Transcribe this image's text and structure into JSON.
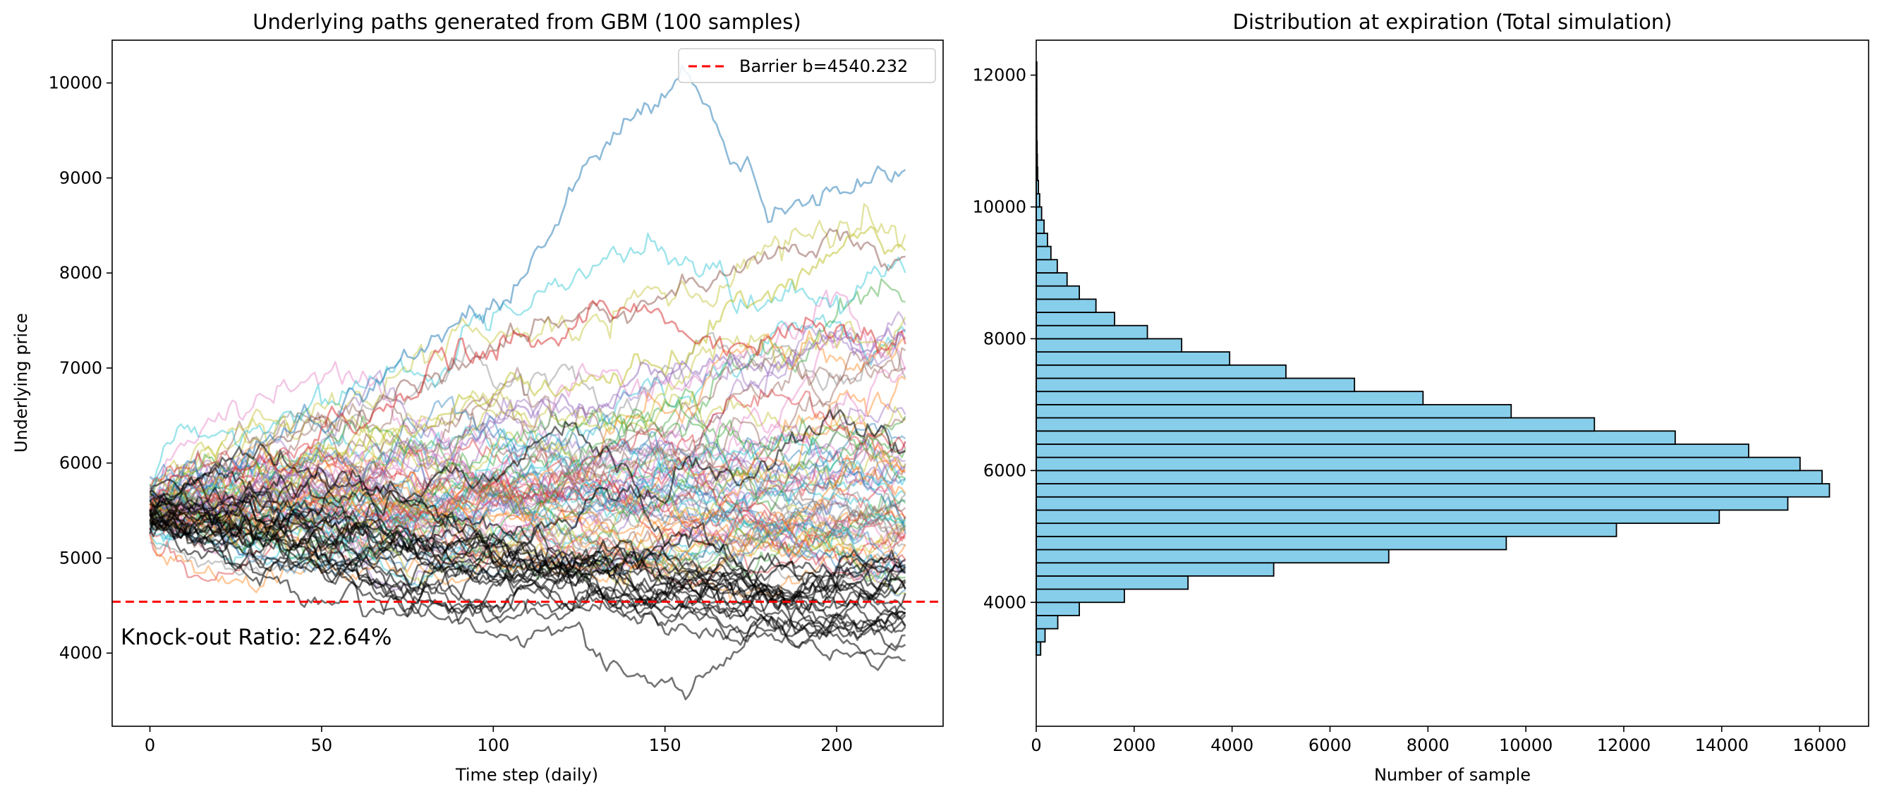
{
  "chart_data": [
    {
      "type": "line",
      "title": "Underlying paths generated from GBM (100 samples)",
      "xlabel": "Time step (daily)",
      "ylabel": "Underlying price",
      "xlim": [
        -11,
        231
      ],
      "ylim": [
        3230,
        10450
      ],
      "xticks": [
        0,
        50,
        100,
        150,
        200
      ],
      "yticks": [
        4000,
        5000,
        6000,
        7000,
        8000,
        9000,
        10000
      ],
      "n_steps": 220,
      "n_paths": 100,
      "start_value": 5500,
      "barrier": 4540.232,
      "legend_label": "Barrier b=4540.232",
      "legend_position": "top-right",
      "annotation": "Knock-out Ratio: 22.64%",
      "knocked_out_color": "#000000",
      "barrier_color": "#ff0000",
      "highlight_paths": [
        {
          "color": "#1f77b4",
          "x": [
            0,
            25,
            50,
            75,
            100,
            120,
            135,
            150,
            155,
            165,
            180,
            200,
            220
          ],
          "y": [
            5500,
            6150,
            6500,
            7050,
            7800,
            8650,
            9400,
            9800,
            10150,
            9600,
            8650,
            8800,
            9100
          ]
        },
        {
          "color": "#8c564b",
          "x": [
            0,
            40,
            80,
            120,
            160,
            200,
            210,
            220
          ],
          "y": [
            5500,
            6200,
            6900,
            7450,
            7800,
            8400,
            8250,
            8150
          ]
        },
        {
          "color": "#bcbd22",
          "x": [
            0,
            50,
            100,
            150,
            175,
            200,
            210,
            220
          ],
          "y": [
            5500,
            6000,
            6650,
            7100,
            7600,
            8100,
            8450,
            8100
          ]
        },
        {
          "color": "#d62728",
          "x": [
            0,
            50,
            100,
            130,
            160,
            200,
            220
          ],
          "y": [
            5500,
            6300,
            7300,
            7750,
            7300,
            7400,
            7150
          ]
        },
        {
          "color": "#9467bd",
          "x": [
            0,
            60,
            120,
            180,
            220
          ],
          "y": [
            5500,
            5950,
            6600,
            7150,
            7500
          ]
        }
      ]
    },
    {
      "type": "bar",
      "orientation": "horizontal",
      "title": "Distribution at expiration (Total simulation)",
      "xlabel": "Number of sample",
      "ylabel": "",
      "xlim": [
        0,
        17000
      ],
      "ylim": [
        2120,
        12530
      ],
      "xticks": [
        0,
        2000,
        4000,
        6000,
        8000,
        10000,
        12000,
        14000,
        16000
      ],
      "yticks": [
        4000,
        6000,
        8000,
        10000,
        12000
      ],
      "bar_color": "#87ceeb",
      "edge_color": "#000000",
      "bin_width": 200,
      "bin_starts": [
        3200,
        3400,
        3600,
        3800,
        4000,
        4200,
        4400,
        4600,
        4800,
        5000,
        5200,
        5400,
        5600,
        5800,
        6000,
        6200,
        6400,
        6600,
        6800,
        7000,
        7200,
        7400,
        7600,
        7800,
        8000,
        8200,
        8400,
        8600,
        8800,
        9000,
        9200,
        9400,
        9600,
        9800,
        10000,
        10200,
        10400,
        10600,
        10800,
        11000,
        11200,
        11400,
        11600,
        11800,
        12000
      ],
      "values": [
        90,
        180,
        440,
        880,
        1800,
        3100,
        4850,
        7200,
        9600,
        11850,
        13950,
        15350,
        16200,
        16050,
        15600,
        14550,
        13050,
        11400,
        9700,
        7900,
        6500,
        5100,
        3950,
        2970,
        2270,
        1600,
        1220,
        880,
        630,
        430,
        300,
        230,
        160,
        110,
        70,
        45,
        30,
        22,
        18,
        12,
        8,
        6,
        4,
        3,
        2
      ]
    }
  ]
}
